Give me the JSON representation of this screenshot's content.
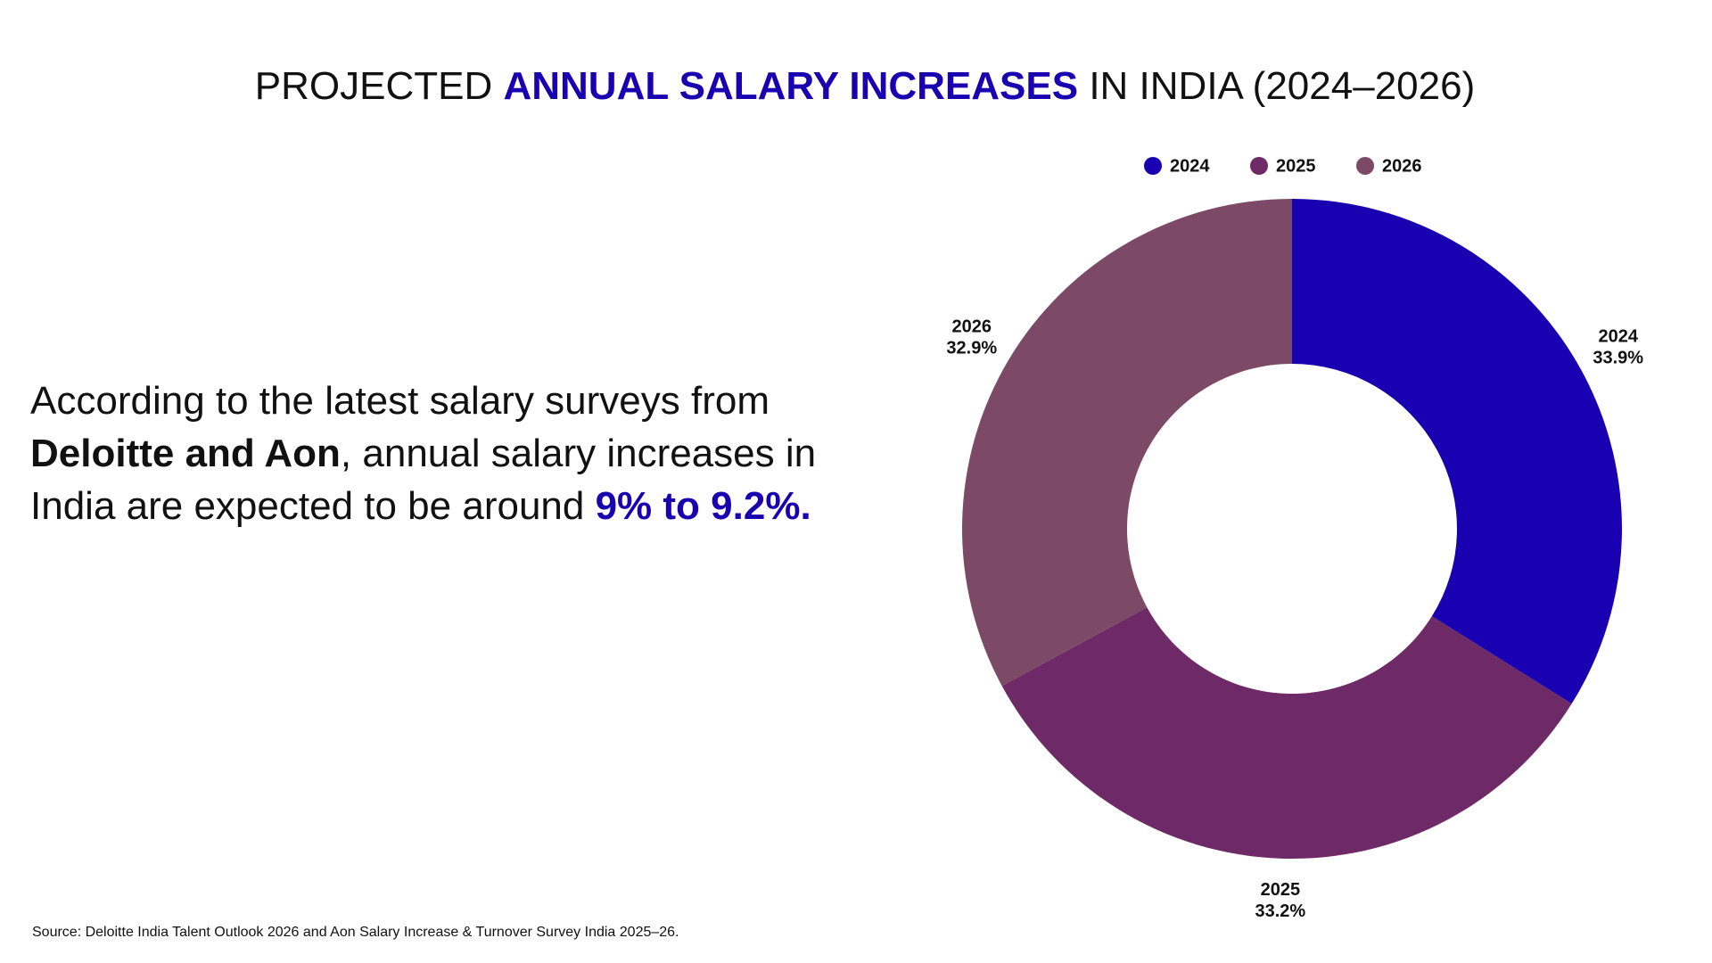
{
  "title": [
    "PROJECTED",
    "ANNUAL SALARY INCREASES",
    "IN INDIA (2024–2026)"
  ],
  "body": [
    "According to the latest salary surveys from ",
    "Deloitte and Aon",
    ", annual salary increases in India are expected to be around ",
    "9% to 9.2%."
  ],
  "source": "Source: Deloitte India Talent Outlook 2026 and Aon Salary Increase & Turnover Survey India 2025–26.",
  "chart_data": {
    "type": "donut",
    "categories": [
      "2024",
      "2025",
      "2026"
    ],
    "values": [
      33.9,
      33.2,
      32.9
    ],
    "value_labels": [
      "33.9%",
      "33.2%",
      "32.9%"
    ],
    "colors": [
      "#1900b0",
      "#6e2a66",
      "#7c4a66"
    ],
    "legend": "top"
  }
}
